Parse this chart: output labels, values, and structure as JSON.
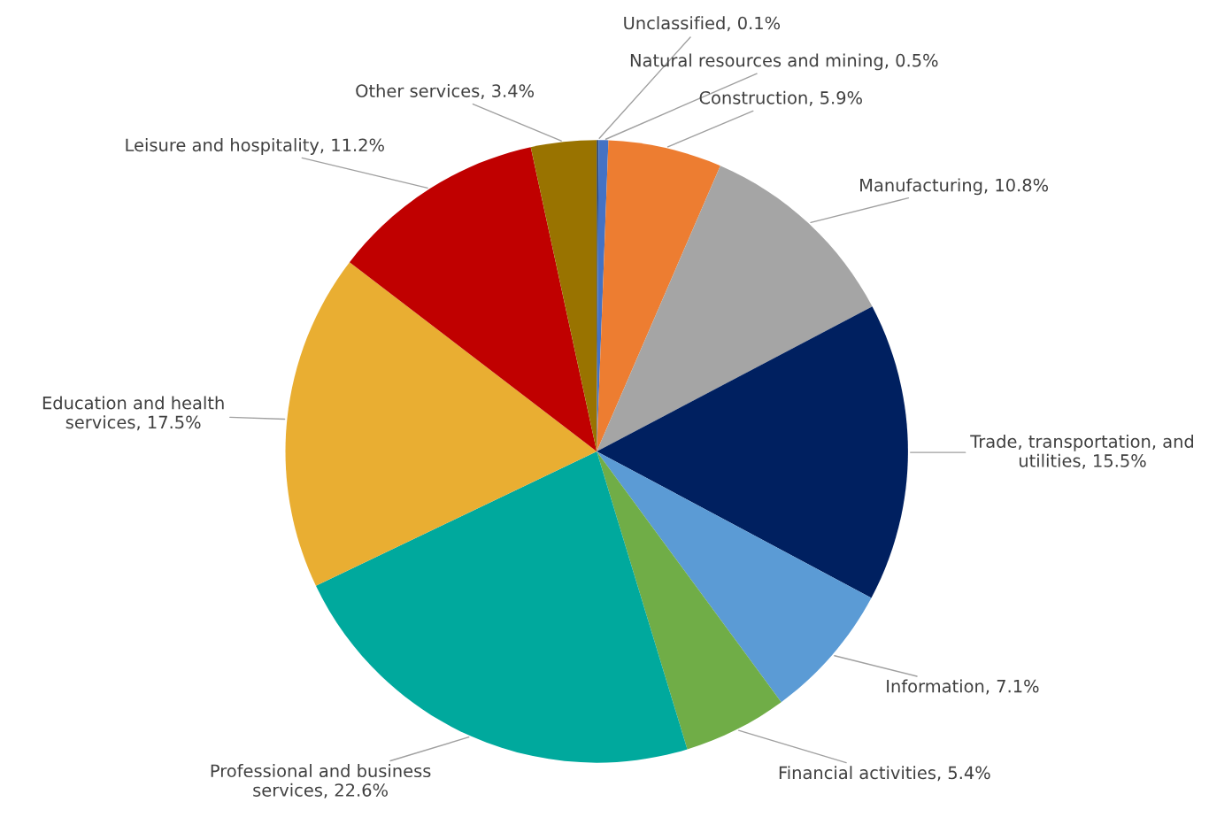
{
  "chart_data": {
    "type": "pie",
    "categories": [
      "Unclassified",
      "Natural resources and mining",
      "Construction",
      "Manufacturing",
      "Trade, transportation, and utilities",
      "Information",
      "Financial activities",
      "Professional and business services",
      "Education and health services",
      "Leisure and hospitality",
      "Other services"
    ],
    "values": [
      0.1,
      0.5,
      5.9,
      10.8,
      15.5,
      7.1,
      5.4,
      22.6,
      17.5,
      11.2,
      3.4
    ],
    "value_labels": [
      "0.1%",
      "0.5%",
      "5.9%",
      "10.8%",
      "15.5%",
      "7.1%",
      "5.4%",
      "22.6%",
      "17.5%",
      "11.2%",
      "3.4%"
    ],
    "colors": [
      "#264478",
      "#4472c4",
      "#ed7d31",
      "#a5a5a5",
      "#002060",
      "#5b9bd5",
      "#70ad47",
      "#00a99d",
      "#e9ae32",
      "#c00000",
      "#997300"
    ]
  }
}
